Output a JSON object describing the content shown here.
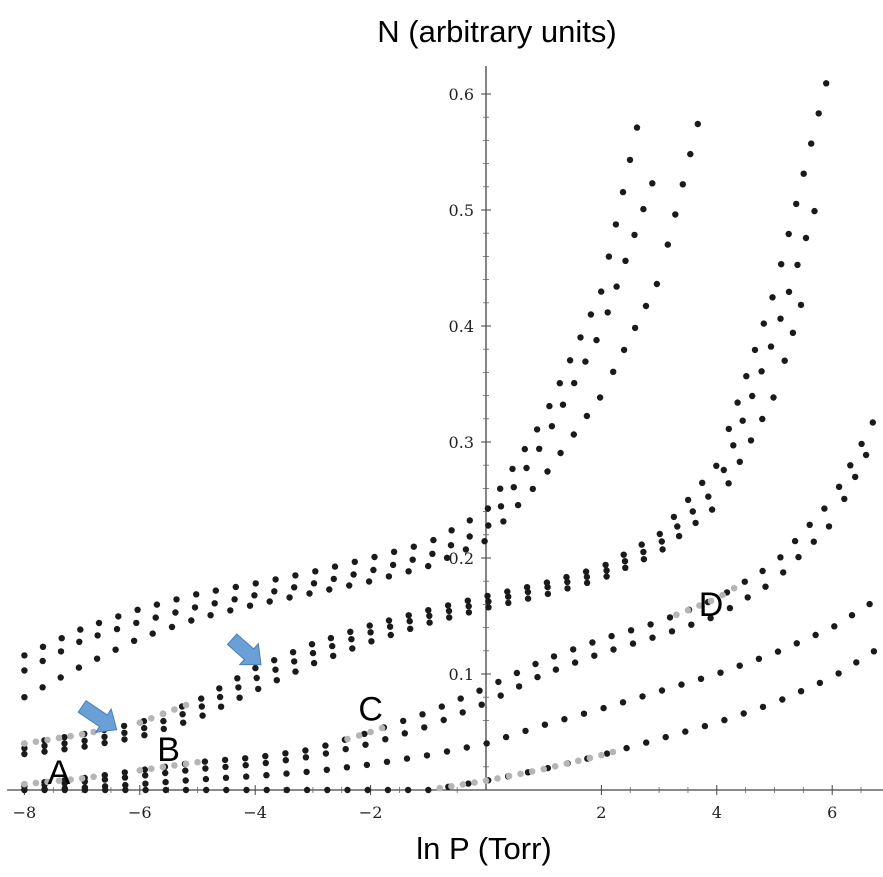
{
  "chart_data": {
    "type": "scatter",
    "title": "N (arbitrary units)",
    "xlabel": "ln P (Torr)",
    "ylabel": "",
    "xlim": [
      -8.3,
      6.9
    ],
    "ylim": [
      0,
      0.62
    ],
    "xticks": [
      -8,
      -6,
      -4,
      -2,
      2,
      4,
      6
    ],
    "xtick_labels": [
      "−8",
      "−6",
      "−4",
      "−2",
      "2",
      "4",
      "6"
    ],
    "yticks": [
      0.1,
      0.2,
      0.3,
      0.4,
      0.5,
      0.6
    ],
    "ytick_labels": [
      "0.1",
      "0.2",
      "0.3",
      "0.4",
      "0.5",
      "0.6"
    ],
    "point_color": "#1a1a1a",
    "highlight_color": "#b5b5b5",
    "arrow_color": "#6a9fd8",
    "series": [
      {
        "x_range": [
          -8,
          0
        ],
        "y_at": [
          [
            -8,
            0.116
          ],
          [
            -7,
            0.139
          ],
          [
            -6,
            0.156
          ],
          [
            -5,
            0.169
          ],
          [
            -4,
            0.178
          ],
          [
            -3,
            0.188
          ],
          [
            -2,
            0.2
          ],
          [
            -1,
            0.213
          ],
          [
            0,
            0.24
          ],
          [
            1,
            0.32
          ],
          [
            2,
            0.43
          ],
          [
            2.7,
            0.59
          ]
        ]
      },
      {
        "x_range": [
          -8,
          0
        ],
        "y_at": [
          [
            -8,
            0.103
          ],
          [
            -7,
            0.129
          ],
          [
            -6,
            0.145
          ],
          [
            -5,
            0.158
          ],
          [
            -4,
            0.168
          ],
          [
            -3,
            0.178
          ],
          [
            -2,
            0.189
          ],
          [
            -1,
            0.202
          ],
          [
            0,
            0.225
          ],
          [
            1,
            0.3
          ],
          [
            2,
            0.396
          ],
          [
            3,
            0.54
          ]
        ]
      },
      {
        "x_range": [
          -8,
          0
        ],
        "y_at": [
          [
            -8,
            0.08
          ],
          [
            -7,
            0.107
          ],
          [
            -6,
            0.131
          ],
          [
            -5,
            0.148
          ],
          [
            -4,
            0.16
          ],
          [
            -3,
            0.17
          ],
          [
            -2,
            0.18
          ],
          [
            -1,
            0.193
          ],
          [
            0,
            0.215
          ],
          [
            1,
            0.27
          ],
          [
            2,
            0.34
          ],
          [
            3,
            0.44
          ],
          [
            3.8,
            0.6
          ]
        ]
      },
      {
        "x_range": [
          -8,
          6
        ],
        "y_at": [
          [
            -8,
            0.04
          ],
          [
            -7,
            0.048
          ],
          [
            -6,
            0.058
          ],
          [
            -5,
            0.077
          ],
          [
            -4,
            0.105
          ],
          [
            -3,
            0.126
          ],
          [
            -2,
            0.142
          ],
          [
            -1,
            0.155
          ],
          [
            0,
            0.167
          ],
          [
            1,
            0.178
          ],
          [
            2,
            0.192
          ],
          [
            3,
            0.22
          ],
          [
            4,
            0.28
          ],
          [
            5,
            0.43
          ],
          [
            5.9,
            0.61
          ]
        ]
      },
      {
        "x_range": [
          -8,
          6
        ],
        "y_at": [
          [
            -8,
            0.036
          ],
          [
            -7,
            0.042
          ],
          [
            -6,
            0.052
          ],
          [
            -5,
            0.07
          ],
          [
            -4,
            0.096
          ],
          [
            -3,
            0.118
          ],
          [
            -2,
            0.136
          ],
          [
            -1,
            0.15
          ],
          [
            0,
            0.162
          ],
          [
            1,
            0.174
          ],
          [
            2,
            0.187
          ],
          [
            3,
            0.212
          ],
          [
            4,
            0.26
          ],
          [
            5,
            0.39
          ],
          [
            5.7,
            0.5
          ]
        ]
      },
      {
        "x_range": [
          -8,
          6
        ],
        "y_at": [
          [
            -8,
            0.031
          ],
          [
            -7,
            0.037
          ],
          [
            -6,
            0.046
          ],
          [
            -5,
            0.062
          ],
          [
            -4,
            0.086
          ],
          [
            -3,
            0.109
          ],
          [
            -2,
            0.128
          ],
          [
            -1,
            0.144
          ],
          [
            0,
            0.157
          ],
          [
            1,
            0.168
          ],
          [
            2,
            0.182
          ],
          [
            3,
            0.205
          ],
          [
            4,
            0.245
          ],
          [
            5,
            0.34
          ],
          [
            5.5,
            0.425
          ]
        ]
      },
      {
        "x_range": [
          -8,
          6.8
        ],
        "y_at": [
          [
            -8,
            0.005
          ],
          [
            -7,
            0.01
          ],
          [
            -6,
            0.017
          ],
          [
            -5,
            0.024
          ],
          [
            -4,
            0.028
          ],
          [
            -3,
            0.035
          ],
          [
            -2,
            0.05
          ],
          [
            -1,
            0.067
          ],
          [
            0,
            0.088
          ],
          [
            1,
            0.112
          ],
          [
            2,
            0.13
          ],
          [
            3,
            0.145
          ],
          [
            4,
            0.165
          ],
          [
            5,
            0.195
          ],
          [
            6,
            0.25
          ],
          [
            6.8,
            0.326
          ]
        ]
      },
      {
        "x_range": [
          -8,
          6.8
        ],
        "y_at": [
          [
            -8,
            0.003
          ],
          [
            -7,
            0.007
          ],
          [
            -6,
            0.012
          ],
          [
            -5,
            0.018
          ],
          [
            -4,
            0.022
          ],
          [
            -3,
            0.029
          ],
          [
            -2,
            0.04
          ],
          [
            -1,
            0.055
          ],
          [
            0,
            0.075
          ],
          [
            1,
            0.1
          ],
          [
            2,
            0.118
          ],
          [
            3,
            0.133
          ],
          [
            4,
            0.15
          ],
          [
            5,
            0.18
          ],
          [
            6,
            0.23
          ],
          [
            6.6,
            0.29
          ]
        ]
      },
      {
        "x_range": [
          -8,
          6.8
        ],
        "y_at": [
          [
            -8,
            0.0
          ],
          [
            -7,
            0.002
          ],
          [
            -6,
            0.005
          ],
          [
            -5,
            0.009
          ],
          [
            -4,
            0.012
          ],
          [
            -3,
            0.016
          ],
          [
            -2,
            0.022
          ],
          [
            -1,
            0.03
          ],
          [
            0,
            0.04
          ],
          [
            1,
            0.056
          ],
          [
            2,
            0.07
          ],
          [
            3,
            0.085
          ],
          [
            4,
            0.1
          ],
          [
            5,
            0.118
          ],
          [
            6,
            0.14
          ],
          [
            6.8,
            0.165
          ]
        ]
      },
      {
        "x_range": [
          -8,
          6.8
        ],
        "y_at": [
          [
            -8,
            0.0
          ],
          [
            -7,
            0.0
          ],
          [
            -6,
            0.0
          ],
          [
            -5,
            0.0
          ],
          [
            -4,
            0.0
          ],
          [
            -3,
            0.0
          ],
          [
            -2,
            0.0
          ],
          [
            -1,
            0.0
          ],
          [
            0,
            0.008
          ],
          [
            1,
            0.018
          ],
          [
            2,
            0.03
          ],
          [
            3,
            0.044
          ],
          [
            4,
            0.058
          ],
          [
            5,
            0.075
          ],
          [
            6,
            0.097
          ],
          [
            6.8,
            0.122
          ]
        ]
      }
    ],
    "highlights": [
      {
        "x_range": [
          -8,
          -6.8
        ],
        "series_index": 3
      },
      {
        "x_range": [
          -8,
          -6.8
        ],
        "series_index": 6
      },
      {
        "x_range": [
          -6,
          -5.2
        ],
        "series_index": 3
      },
      {
        "x_range": [
          -6,
          -5.0
        ],
        "series_index": 6
      },
      {
        "x_range": [
          -2.4,
          -1.7
        ],
        "series_index": 6
      },
      {
        "x_range": [
          -0.8,
          2.3
        ],
        "series_index": 9
      },
      {
        "x_range": [
          3.3,
          4.3
        ],
        "series_index": 6
      }
    ],
    "annotations": [
      {
        "text": "A",
        "x": -7.4,
        "y": 0.005
      },
      {
        "text": "B",
        "x": -5.5,
        "y": 0.025
      },
      {
        "text": "C",
        "x": -2.0,
        "y": 0.06
      },
      {
        "text": "D",
        "x": 3.9,
        "y": 0.15
      }
    ],
    "arrows": [
      {
        "from": [
          -7.0,
          0.072
        ],
        "to": [
          -6.4,
          0.052
        ]
      },
      {
        "from": [
          -4.4,
          0.13
        ],
        "to": [
          -3.9,
          0.108
        ]
      }
    ]
  }
}
